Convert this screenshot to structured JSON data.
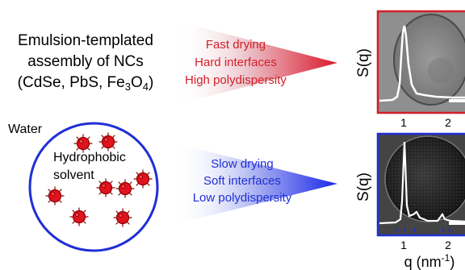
{
  "left_text": {
    "line1": "Emulsion-templated",
    "line2": "assembly of NCs",
    "line3_prefix": "(CdSe, PbS, Fe",
    "sub3": "3",
    "o": "O",
    "sub4": "4",
    "line3_suffix": ")"
  },
  "fast": {
    "line1": "Fast drying",
    "line2": "Hard interfaces",
    "line3": "High polydispersity",
    "color": "#d21f27"
  },
  "slow": {
    "line1": "Slow drying",
    "line2": "Soft interfaces",
    "line3": "Low polydispersity",
    "color": "#1f2fd6"
  },
  "emulsion": {
    "water": "Water",
    "solvent_line1": "Hydrophobic",
    "solvent_line2": "solvent"
  },
  "panels": {
    "y_label": "S(q)",
    "top_ticks": [
      "1",
      "2"
    ],
    "bottom_ticks": [
      "1",
      "2"
    ],
    "x_label_prefix": "q (nm",
    "x_label_exp": "-1",
    "x_label_suffix": ")",
    "top_border": "#d21f27",
    "bottom_border": "#1f2fd6"
  }
}
